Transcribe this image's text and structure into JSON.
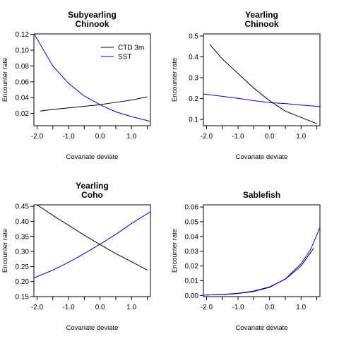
{
  "chart_data": [
    {
      "type": "line",
      "title": [
        "Subyearling",
        "Chinook"
      ],
      "xlabel": "Covariate deviate",
      "ylabel": "Encounter rate",
      "xlim": [
        -2.1,
        1.6
      ],
      "ylim": [
        0.0045,
        0.1205
      ],
      "xticks": [
        -2.0,
        -1.5,
        -1.0,
        -0.5,
        0.0,
        0.5,
        1.0,
        1.5
      ],
      "xtick_labels": [
        "-2.0",
        "",
        "-1.0",
        "",
        "0.0",
        "",
        "1.0",
        ""
      ],
      "yticks": [
        0.02,
        0.04,
        0.06,
        0.08,
        0.1,
        0.12
      ],
      "ytick_labels": [
        "0.02",
        "0.04",
        "0.06",
        "0.08",
        "0.10",
        "0.12"
      ],
      "legend": "top-right",
      "series": [
        {
          "name": "CTD 3m",
          "color": "#000000",
          "x": [
            -1.9,
            -1.5,
            -1.0,
            -0.5,
            0.0,
            0.5,
            1.0,
            1.5
          ],
          "y": [
            0.023,
            0.025,
            0.027,
            0.029,
            0.031,
            0.034,
            0.037,
            0.041
          ]
        },
        {
          "name": "SST",
          "color": "#0000cc",
          "x": [
            -2.1,
            -1.5,
            -1.0,
            -0.5,
            0.0,
            0.5,
            1.0,
            1.6
          ],
          "y": [
            0.121,
            0.08,
            0.058,
            0.042,
            0.031,
            0.022,
            0.016,
            0.01
          ]
        }
      ]
    },
    {
      "type": "line",
      "title": [
        "Yearling",
        "Chinook"
      ],
      "xlabel": "Covariate deviate",
      "ylabel": "Encounter rate",
      "xlim": [
        -2.1,
        1.6
      ],
      "ylim": [
        0.07,
        0.51
      ],
      "xticks": [
        -2.0,
        -1.5,
        -1.0,
        -0.5,
        0.0,
        0.5,
        1.0,
        1.5
      ],
      "xtick_labels": [
        "-2.0",
        "",
        "-1.0",
        "",
        "0.0",
        "",
        "1.0",
        ""
      ],
      "yticks": [
        0.1,
        0.2,
        0.3,
        0.4,
        0.5
      ],
      "ytick_labels": [
        "0.1",
        "0.2",
        "0.3",
        "0.4",
        "0.5"
      ],
      "series": [
        {
          "color": "#000000",
          "x": [
            -1.9,
            -1.5,
            -1.0,
            -0.5,
            0.0,
            0.5,
            1.0,
            1.5
          ],
          "y": [
            0.46,
            0.39,
            0.32,
            0.25,
            0.19,
            0.14,
            0.11,
            0.08
          ]
        },
        {
          "color": "#0000cc",
          "x": [
            -2.1,
            -1.5,
            -1.0,
            -0.5,
            0.0,
            0.5,
            1.0,
            1.6
          ],
          "y": [
            0.222,
            0.211,
            0.201,
            0.19,
            0.181,
            0.176,
            0.169,
            0.162
          ]
        }
      ]
    },
    {
      "type": "line",
      "title": [
        "Yearling",
        "Coho"
      ],
      "xlabel": "Covariate deviate",
      "ylabel": "Encounter rate",
      "xlim": [
        -2.1,
        1.6
      ],
      "ylim": [
        0.15,
        0.455
      ],
      "xticks": [
        -2.0,
        -1.5,
        -1.0,
        -0.5,
        0.0,
        0.5,
        1.0,
        1.5
      ],
      "xtick_labels": [
        "-2.0",
        "",
        "-1.0",
        "",
        "0.0",
        "",
        "1.0",
        ""
      ],
      "yticks": [
        0.15,
        0.2,
        0.25,
        0.3,
        0.35,
        0.4,
        0.45
      ],
      "ytick_labels": [
        "0.15",
        "0.20",
        "0.25",
        "0.30",
        "0.35",
        "0.40",
        "0.45"
      ],
      "series": [
        {
          "color": "#000000",
          "x": [
            -2.0,
            -1.5,
            -1.0,
            -0.5,
            0.0,
            0.5,
            1.0,
            1.5
          ],
          "y": [
            0.455,
            0.42,
            0.387,
            0.354,
            0.323,
            0.293,
            0.266,
            0.238
          ]
        },
        {
          "color": "#0000cc",
          "x": [
            -2.1,
            -1.5,
            -1.0,
            -0.5,
            0.0,
            0.5,
            1.0,
            1.6
          ],
          "y": [
            0.212,
            0.238,
            0.264,
            0.293,
            0.324,
            0.357,
            0.393,
            0.432
          ]
        }
      ]
    },
    {
      "type": "line",
      "title": [
        "Sablefish"
      ],
      "xlabel": "Covariate deviate",
      "ylabel": "Encounter rate",
      "xlim": [
        -2.1,
        1.6
      ],
      "ylim": [
        -0.0008,
        0.0615
      ],
      "xticks": [
        -2.0,
        -1.5,
        -1.0,
        -0.5,
        0.0,
        0.5,
        1.0,
        1.5
      ],
      "xtick_labels": [
        "-2.0",
        "",
        "-1.0",
        "",
        "0.0",
        "",
        "1.0",
        ""
      ],
      "yticks": [
        0.0,
        0.01,
        0.02,
        0.03,
        0.04,
        0.05,
        0.06
      ],
      "ytick_labels": [
        "0.00",
        "0.01",
        "0.02",
        "0.03",
        "0.04",
        "0.05",
        "0.06"
      ],
      "series": [
        {
          "color": "#000000",
          "x": [
            -2.0,
            -1.5,
            -1.0,
            -0.5,
            0.0,
            0.5,
            1.0,
            1.4
          ],
          "y": [
            0.0003,
            0.0007,
            0.0015,
            0.003,
            0.0058,
            0.011,
            0.02,
            0.032
          ]
        },
        {
          "color": "#0000cc",
          "x": [
            -2.1,
            -1.5,
            -1.0,
            -0.5,
            0.0,
            0.5,
            1.0,
            1.3,
            1.6
          ],
          "y": [
            0.0003,
            0.0006,
            0.0013,
            0.0027,
            0.0055,
            0.0112,
            0.0215,
            0.031,
            0.046
          ]
        }
      ]
    }
  ]
}
